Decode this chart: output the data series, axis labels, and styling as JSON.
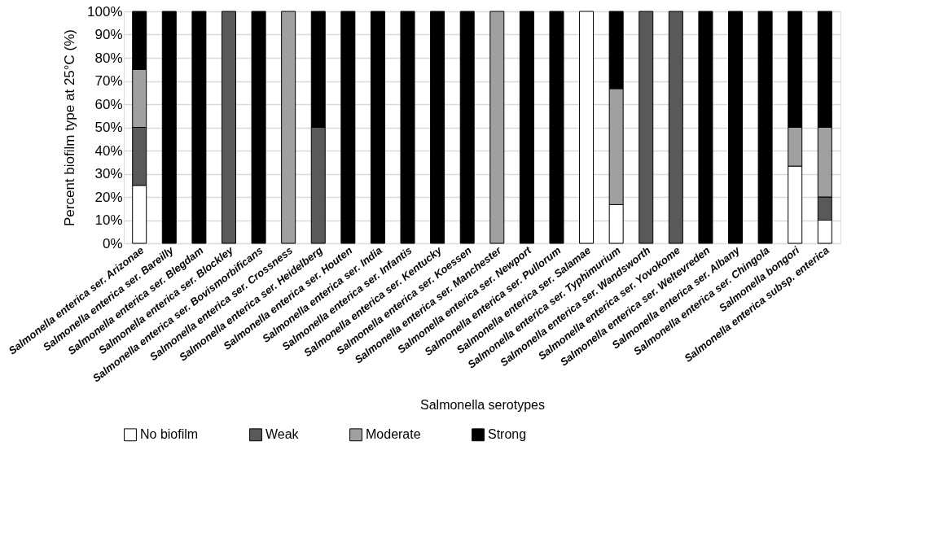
{
  "chart_data": {
    "type": "bar",
    "stacked": true,
    "xlabel": "Salmonella serotypes",
    "ylabel": "Percent biofilm type at 25°C (%)",
    "categories": [
      "Salmonella  enterica ser. Arizonae",
      "Salmonella enterica ser. Bareilly",
      "Salmonella enterica ser. Blegdam",
      "Salmonella enterica ser. Blockley",
      "Salmonella enterica ser. Bovismorbificans",
      "Salmonella enterica ser. Crossness",
      "Salmonella enterica ser. Heidelberg",
      "Salmonella enterica ser. Houten",
      "Salmonella enterica ser. India",
      "Salmonella enterica ser. Infantis",
      "Salmonella enterica ser. Kentucky",
      "Salmonella enterica ser. Koessen",
      "Salmonella enterica ser. Manchester",
      "Salmonella enterica ser. Newport",
      "Salmonella enterica ser. Pullorum",
      "Salmonella enterica ser. Salamae",
      "Salmonella enterica ser. Typhimurium",
      "Salmonella enterica ser. Wandsworth",
      "Salmonella enterica ser. Yovokome",
      "Salmonella enterica ser.  Weltevreden",
      "Salmonella enterica ser. Albany",
      "Salmonella enterica ser. Chingola",
      "Salmonella bongori",
      "Salmonella enterica subsp. enterica"
    ],
    "series": [
      {
        "name": "No biofilm",
        "color": "#ffffff",
        "values": [
          25,
          0,
          0,
          0,
          0,
          0,
          0,
          0,
          0,
          0,
          0,
          0,
          0,
          0,
          0,
          100,
          16.7,
          0,
          0,
          0,
          0,
          0,
          33.3,
          10
        ]
      },
      {
        "name": "Weak",
        "color": "#595959",
        "values": [
          25,
          0,
          0,
          100,
          0,
          0,
          50,
          0,
          0,
          0,
          0,
          0,
          0,
          0,
          0,
          0,
          0,
          100,
          100,
          0,
          0,
          0,
          0,
          10
        ]
      },
      {
        "name": "Moderate",
        "color": "#a0a0a0",
        "values": [
          25,
          0,
          0,
          0,
          0,
          100,
          0,
          0,
          0,
          0,
          0,
          0,
          100,
          0,
          0,
          0,
          50,
          0,
          0,
          0,
          0,
          0,
          16.7,
          30
        ]
      },
      {
        "name": "Strong",
        "color": "#000000",
        "values": [
          25,
          100,
          100,
          0,
          100,
          0,
          50,
          100,
          100,
          100,
          100,
          100,
          0,
          100,
          100,
          0,
          33.3,
          0,
          0,
          100,
          100,
          100,
          50,
          50
        ]
      }
    ],
    "ylim": [
      0,
      100
    ],
    "yticks": [
      {
        "value": 0,
        "label": "0%"
      },
      {
        "value": 10,
        "label": "10%"
      },
      {
        "value": 20,
        "label": "20%"
      },
      {
        "value": 30,
        "label": "30%"
      },
      {
        "value": 40,
        "label": "40%"
      },
      {
        "value": 50,
        "label": "50%"
      },
      {
        "value": 60,
        "label": "60%"
      },
      {
        "value": 70,
        "label": "70%"
      },
      {
        "value": 80,
        "label": "80%"
      },
      {
        "value": 90,
        "label": "90%"
      },
      {
        "value": 100,
        "label": "100%"
      }
    ],
    "grid": "y",
    "legend": "bottom"
  }
}
